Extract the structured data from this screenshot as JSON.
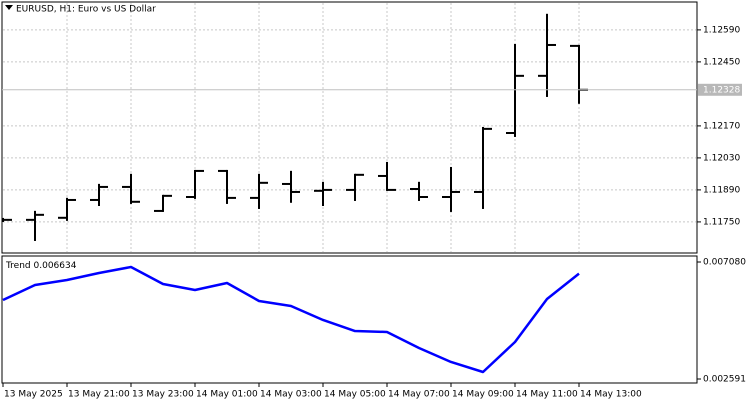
{
  "chart_data": [
    {
      "type": "ohlc",
      "title": "EURUSD, H1:  Euro vs US Dollar",
      "color": "#000000",
      "grid": true,
      "categories": [
        "13 May 2025",
        null,
        "13 May 21:00",
        null,
        "13 May 23:00",
        null,
        "14 May 01:00",
        null,
        "14 May 03:00",
        null,
        "14 May 05:00",
        null,
        "14 May 07:00",
        null,
        "14 May 09:00",
        null,
        "14 May 11:00",
        null,
        "14 May 13:00"
      ],
      "open": [
        1.11759,
        1.11759,
        1.11768,
        1.11846,
        1.11903,
        1.11798,
        1.11859,
        1.11973,
        1.11855,
        1.11916,
        1.11886,
        1.1189,
        1.11951,
        1.11894,
        1.11859,
        1.11881,
        1.12139,
        1.12389,
        1.1252
      ],
      "high": [
        1.11763,
        1.11794,
        1.11851,
        1.11912,
        1.11956,
        1.11864,
        1.11973,
        1.11973,
        1.11956,
        1.11969,
        1.11921,
        1.11956,
        1.12008,
        1.11921,
        1.11986,
        1.12161,
        1.12524,
        1.12656,
        1.1252
      ],
      "low": [
        1.11754,
        1.11671,
        1.11759,
        1.11824,
        1.11833,
        1.11798,
        1.11855,
        1.11833,
        1.11811,
        1.11838,
        1.11824,
        1.11846,
        1.1189,
        1.11846,
        1.11798,
        1.11811,
        1.12126,
        1.12301,
        1.12271
      ],
      "close": [
        1.11759,
        1.11781,
        1.11846,
        1.11903,
        1.11838,
        1.11864,
        1.11973,
        1.11855,
        1.11921,
        1.11881,
        1.1189,
        1.11956,
        1.1189,
        1.11859,
        1.11881,
        1.12157,
        1.12389,
        1.12524,
        1.12328
      ],
      "ylim": [
        1.11614,
        1.12712
      ],
      "yticks": [
        {
          "value": 1.1259,
          "label": "1.12590"
        },
        {
          "value": 1.1245,
          "label": "1.12450"
        },
        {
          "value": 1.1217,
          "label": "1.12170"
        },
        {
          "value": 1.1203,
          "label": "1.12030"
        },
        {
          "value": 1.1189,
          "label": "1.11890"
        },
        {
          "value": 1.1175,
          "label": "1.11750"
        }
      ],
      "current_price": {
        "value": 1.12328,
        "label": "1.12328"
      }
    },
    {
      "type": "line",
      "ylim": [
        0.002437,
        0.00731
      ],
      "yticks": [
        {
          "value": 0.00708,
          "label": "0.007080"
        },
        0.002591
      ],
      "series": [
        {
          "name": "Trend",
          "color": "#0000ff",
          "values": [
            0.005622,
            0.006198,
            0.006389,
            0.006658,
            0.006888,
            0.006236,
            0.006006,
            0.006274,
            0.005584,
            0.005392,
            0.004855,
            0.004432,
            0.004394,
            0.00378,
            0.003243,
            0.002859,
            0.00401,
            0.00566,
            0.006634
          ]
        }
      ]
    }
  ]
}
